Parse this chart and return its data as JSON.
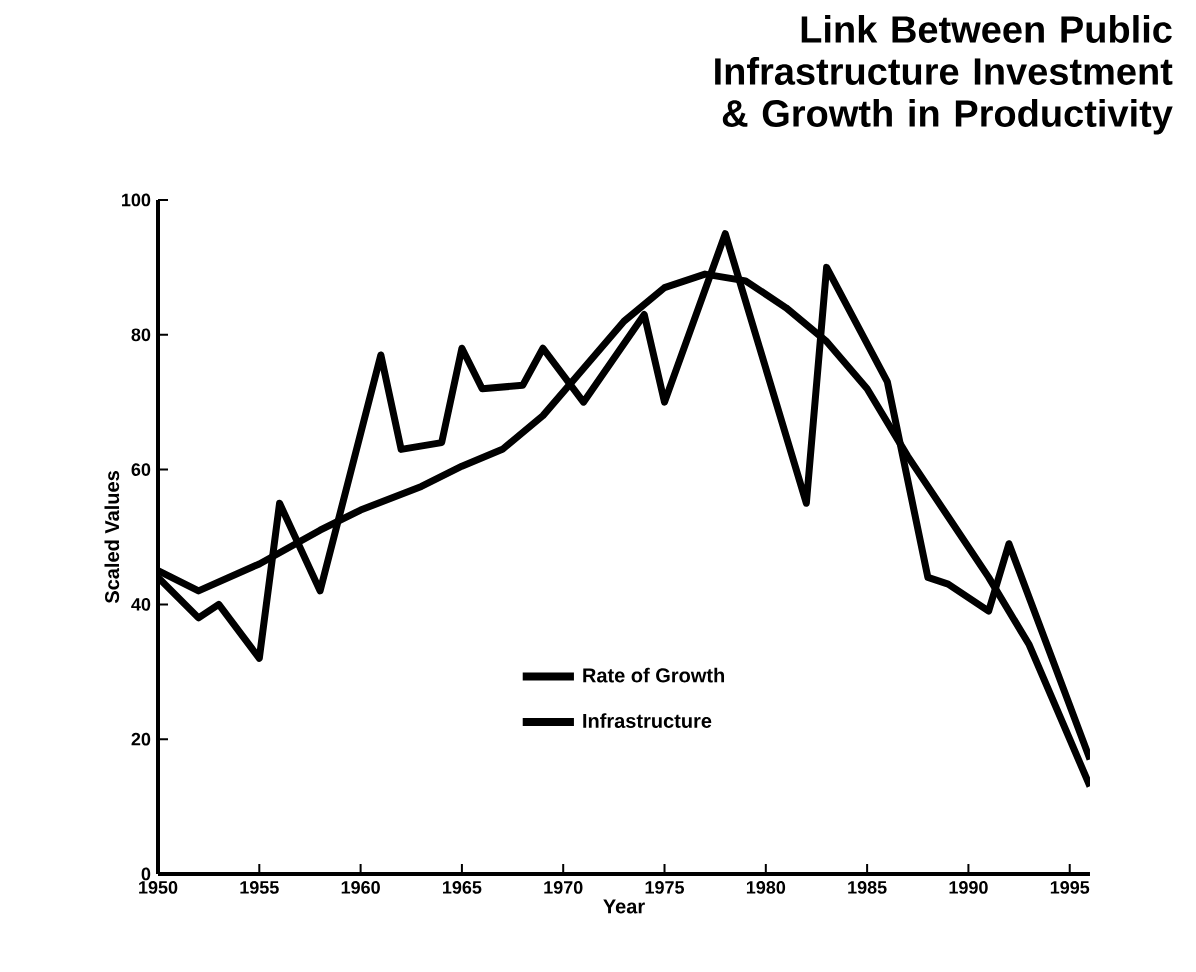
{
  "chart_data": {
    "type": "line",
    "title": "Link Between Public Infrastructure Investment & Growth in Productivity",
    "xlabel": "Year",
    "ylabel": "Scaled Values",
    "xlim": [
      1950,
      1996
    ],
    "ylim": [
      0,
      100
    ],
    "xticks": [
      1950,
      1955,
      1960,
      1965,
      1970,
      1975,
      1980,
      1985,
      1990,
      1995
    ],
    "yticks": [
      0,
      20,
      40,
      60,
      80,
      100
    ],
    "grid": false,
    "legend": "bottom",
    "marker": "none",
    "line_style": "solid",
    "series": [
      {
        "name": "Rate of Growth",
        "color": "#000000",
        "x": [
          1950,
          1952,
          1953,
          1955,
          1956,
          1958,
          1961,
          1962,
          1964,
          1965,
          1966,
          1968,
          1969,
          1971,
          1974,
          1975,
          1978,
          1982,
          1983,
          1986,
          1988,
          1989,
          1991,
          1992,
          1996
        ],
        "values": [
          44,
          38,
          40,
          32,
          55,
          42,
          77,
          63,
          64,
          78,
          72,
          72.5,
          78,
          70,
          83,
          70,
          95,
          55,
          90,
          73,
          44,
          43,
          39,
          49,
          17
        ]
      },
      {
        "name": "Infrastructure",
        "color": "#000000",
        "x": [
          1950,
          1952,
          1955,
          1958,
          1960,
          1963,
          1965,
          1967,
          1969,
          1971,
          1973,
          1975,
          1977,
          1979,
          1981,
          1983,
          1985,
          1987,
          1989,
          1991,
          1993,
          1995,
          1996
        ],
        "values": [
          45,
          42,
          46,
          51,
          54,
          57.5,
          60.5,
          63,
          68,
          75,
          82,
          87,
          89,
          88,
          84,
          79,
          72,
          62,
          53,
          44,
          34,
          20,
          13
        ]
      }
    ]
  }
}
